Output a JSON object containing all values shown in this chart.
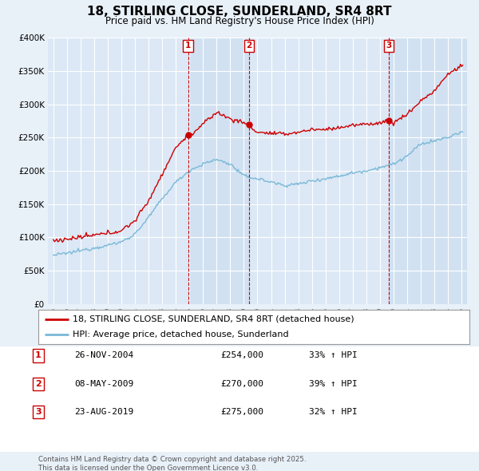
{
  "title": "18, STIRLING CLOSE, SUNDERLAND, SR4 8RT",
  "subtitle": "Price paid vs. HM Land Registry's House Price Index (HPI)",
  "legend_entry1": "18, STIRLING CLOSE, SUNDERLAND, SR4 8RT (detached house)",
  "legend_entry2": "HPI: Average price, detached house, Sunderland",
  "footer": "Contains HM Land Registry data © Crown copyright and database right 2025.\nThis data is licensed under the Open Government Licence v3.0.",
  "sale_labels": [
    {
      "num": "1",
      "date": "26-NOV-2004",
      "price": "£254,000",
      "hpi": "33% ↑ HPI",
      "x": 2004.9
    },
    {
      "num": "2",
      "date": "08-MAY-2009",
      "price": "£270,000",
      "hpi": "39% ↑ HPI",
      "x": 2009.37
    },
    {
      "num": "3",
      "date": "23-AUG-2019",
      "price": "£275,000",
      "hpi": "32% ↑ HPI",
      "x": 2019.65
    }
  ],
  "sale_prices": [
    254000,
    270000,
    275000
  ],
  "ylim": [
    0,
    400000
  ],
  "xlim_start": 1994.6,
  "xlim_end": 2025.4,
  "background_color": "#e8f0f8",
  "plot_bg_color": "#dce8f5",
  "shade_color": "#cddff0",
  "grid_color": "#ffffff",
  "red_color": "#cc0000",
  "blue_color": "#7ab8d8",
  "vline_color": "#cc0000",
  "title_fontsize": 11,
  "subtitle_fontsize": 9
}
